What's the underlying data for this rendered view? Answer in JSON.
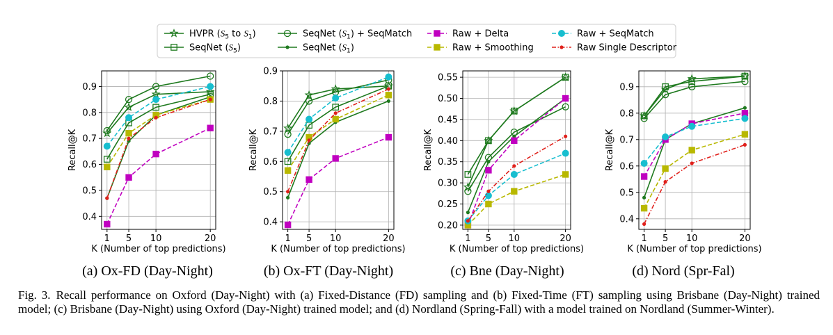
{
  "legend": {
    "entries": [
      {
        "key": "hvpr",
        "parts": [
          "HVPR (",
          "S",
          "5",
          " to ",
          "S",
          "1",
          ")"
        ]
      },
      {
        "key": "seqnet_s5",
        "parts": [
          "SeqNet (",
          "S",
          "5",
          ")"
        ]
      },
      {
        "key": "seqnet_s1_seqmatch",
        "parts": [
          "SeqNet (",
          "S",
          "1",
          ") + SeqMatch"
        ]
      },
      {
        "key": "seqnet_s1",
        "parts": [
          "SeqNet (",
          "S",
          "1",
          ")"
        ]
      },
      {
        "key": "raw_delta",
        "parts": [
          "Raw + Delta"
        ]
      },
      {
        "key": "raw_smoothing",
        "parts": [
          "Raw + Smoothing"
        ]
      },
      {
        "key": "raw_seqmatch",
        "parts": [
          "Raw + SeqMatch"
        ]
      },
      {
        "key": "raw_single",
        "parts": [
          "Raw Single Descriptor"
        ]
      }
    ]
  },
  "series_styles": {
    "hvpr": {
      "color": "#1f7a1f",
      "dash": "solid",
      "marker": "star"
    },
    "seqnet_s5": {
      "color": "#1f7a1f",
      "dash": "solid",
      "marker": "square-open"
    },
    "seqnet_s1_seqmatch": {
      "color": "#1f7a1f",
      "dash": "solid",
      "marker": "circle-open"
    },
    "seqnet_s1": {
      "color": "#1f7a1f",
      "dash": "solid",
      "marker": "dot"
    },
    "raw_delta": {
      "color": "#c000c0",
      "dash": "dashed",
      "marker": "square"
    },
    "raw_smoothing": {
      "color": "#b8b800",
      "dash": "dashed",
      "marker": "square"
    },
    "raw_seqmatch": {
      "color": "#17becf",
      "dash": "dashed",
      "marker": "circle"
    },
    "raw_single": {
      "color": "#e0201b",
      "dash": "dashdot",
      "marker": "dot"
    }
  },
  "chart_data": [
    {
      "type": "line",
      "panel_label": "(a) Ox-FD (Day-Night)",
      "xlabel": "K (Number of top predictions)",
      "ylabel": "Recall@K",
      "x": [
        1,
        5,
        10,
        20
      ],
      "xticks": [
        "1",
        "5",
        "10",
        "20"
      ],
      "ylim": [
        0.35,
        0.96
      ],
      "yticks": [
        0.4,
        0.5,
        0.6,
        0.7,
        0.8,
        0.9
      ],
      "yticklabels": [
        "0.4",
        "0.5",
        "0.6",
        "0.7",
        "0.8",
        "0.9"
      ],
      "grid": true,
      "series": [
        {
          "key": "hvpr",
          "name": "HVPR (S5 to S1)",
          "values": [
            0.72,
            0.82,
            0.87,
            0.88
          ]
        },
        {
          "key": "seqnet_s5",
          "name": "SeqNet (S5)",
          "values": [
            0.62,
            0.76,
            0.82,
            0.87
          ]
        },
        {
          "key": "seqnet_s1_seqmatch",
          "name": "SeqNet (S1) + SeqMatch",
          "values": [
            0.73,
            0.85,
            0.9,
            0.94
          ]
        },
        {
          "key": "seqnet_s1",
          "name": "SeqNet (S1)",
          "values": [
            0.47,
            0.69,
            0.79,
            0.86
          ]
        },
        {
          "key": "raw_delta",
          "name": "Raw + Delta",
          "values": [
            0.37,
            0.55,
            0.64,
            0.74
          ]
        },
        {
          "key": "raw_smoothing",
          "name": "Raw + Smoothing",
          "values": [
            0.59,
            0.72,
            0.79,
            0.85
          ]
        },
        {
          "key": "raw_seqmatch",
          "name": "Raw + SeqMatch",
          "values": [
            0.67,
            0.78,
            0.85,
            0.9
          ]
        },
        {
          "key": "raw_single",
          "name": "Raw Single Descriptor",
          "values": [
            0.47,
            0.7,
            0.78,
            0.85
          ]
        }
      ]
    },
    {
      "type": "line",
      "panel_label": "(b) Ox-FT (Day-Night)",
      "xlabel": "K (Number of top predictions)",
      "ylabel": "Recall@K",
      "x": [
        1,
        5,
        10,
        20
      ],
      "xticks": [
        "1",
        "5",
        "10",
        "20"
      ],
      "ylim": [
        0.375,
        0.9
      ],
      "yticks": [
        0.4,
        0.5,
        0.6,
        0.7,
        0.8,
        0.9
      ],
      "yticklabels": [
        "0.4",
        "0.5",
        "0.6",
        "0.7",
        "0.8",
        "0.9"
      ],
      "grid": true,
      "series": [
        {
          "key": "hvpr",
          "name": "HVPR (S5 to S1)",
          "values": [
            0.71,
            0.82,
            0.84,
            0.85
          ]
        },
        {
          "key": "seqnet_s5",
          "name": "SeqNet (S5)",
          "values": [
            0.6,
            0.72,
            0.78,
            0.85
          ]
        },
        {
          "key": "seqnet_s1_seqmatch",
          "name": "SeqNet (S1) + SeqMatch",
          "values": [
            0.69,
            0.8,
            0.83,
            0.87
          ]
        },
        {
          "key": "seqnet_s1",
          "name": "SeqNet (S1)",
          "values": [
            0.48,
            0.66,
            0.73,
            0.8
          ]
        },
        {
          "key": "raw_delta",
          "name": "Raw + Delta",
          "values": [
            0.39,
            0.54,
            0.61,
            0.68
          ]
        },
        {
          "key": "raw_smoothing",
          "name": "Raw + Smoothing",
          "values": [
            0.57,
            0.68,
            0.74,
            0.82
          ]
        },
        {
          "key": "raw_seqmatch",
          "name": "Raw + SeqMatch",
          "values": [
            0.63,
            0.74,
            0.81,
            0.88
          ]
        },
        {
          "key": "raw_single",
          "name": "Raw Single Descriptor",
          "values": [
            0.5,
            0.67,
            0.76,
            0.84
          ]
        }
      ]
    },
    {
      "type": "line",
      "panel_label": "(c) Bne (Day-Night)",
      "xlabel": "K (Number of top predictions)",
      "ylabel": "Recall@K",
      "x": [
        1,
        5,
        10,
        20
      ],
      "xticks": [
        "1",
        "5",
        "10",
        "20"
      ],
      "ylim": [
        0.19,
        0.565
      ],
      "yticks": [
        0.2,
        0.25,
        0.3,
        0.35,
        0.4,
        0.45,
        0.5,
        0.55
      ],
      "yticklabels": [
        "0.20",
        "0.25",
        "0.30",
        "0.35",
        "0.40",
        "0.45",
        "0.50",
        "0.55"
      ],
      "grid": true,
      "series": [
        {
          "key": "hvpr",
          "name": "HVPR (S5 to S1)",
          "values": [
            0.29,
            0.4,
            0.47,
            0.55
          ]
        },
        {
          "key": "seqnet_s5",
          "name": "SeqNet (S5)",
          "values": [
            0.32,
            0.4,
            0.47,
            0.55
          ]
        },
        {
          "key": "seqnet_s1_seqmatch",
          "name": "SeqNet (S1) + SeqMatch",
          "values": [
            0.28,
            0.36,
            0.42,
            0.48
          ]
        },
        {
          "key": "seqnet_s1",
          "name": "SeqNet (S1)",
          "values": [
            0.23,
            0.35,
            0.41,
            0.5
          ]
        },
        {
          "key": "raw_delta",
          "name": "Raw + Delta",
          "values": [
            0.2,
            0.33,
            0.4,
            0.5
          ]
        },
        {
          "key": "raw_smoothing",
          "name": "Raw + Smoothing",
          "values": [
            0.2,
            0.25,
            0.28,
            0.32
          ]
        },
        {
          "key": "raw_seqmatch",
          "name": "Raw + SeqMatch",
          "values": [
            0.21,
            0.27,
            0.32,
            0.37
          ]
        },
        {
          "key": "raw_single",
          "name": "Raw Single Descriptor",
          "values": [
            0.21,
            0.28,
            0.34,
            0.41
          ]
        }
      ]
    },
    {
      "type": "line",
      "panel_label": "(d) Nord (Spr-Fal)",
      "xlabel": "K (Number of top predictions)",
      "ylabel": "Recall@K",
      "x": [
        1,
        5,
        10,
        20
      ],
      "xticks": [
        "1",
        "5",
        "10",
        "20"
      ],
      "ylim": [
        0.36,
        0.96
      ],
      "yticks": [
        0.4,
        0.5,
        0.6,
        0.7,
        0.8,
        0.9
      ],
      "yticklabels": [
        "0.4",
        "0.5",
        "0.6",
        "0.7",
        "0.8",
        "0.9"
      ],
      "grid": true,
      "series": [
        {
          "key": "hvpr",
          "name": "HVPR (S5 to S1)",
          "values": [
            0.79,
            0.89,
            0.93,
            0.94
          ]
        },
        {
          "key": "seqnet_s5",
          "name": "SeqNet (S5)",
          "values": [
            0.79,
            0.9,
            0.92,
            0.94
          ]
        },
        {
          "key": "seqnet_s1_seqmatch",
          "name": "SeqNet (S1) + SeqMatch",
          "values": [
            0.78,
            0.87,
            0.9,
            0.92
          ]
        },
        {
          "key": "seqnet_s1",
          "name": "SeqNet (S1)",
          "values": [
            0.48,
            0.7,
            0.76,
            0.82
          ]
        },
        {
          "key": "raw_delta",
          "name": "Raw + Delta",
          "values": [
            0.56,
            0.7,
            0.76,
            0.8
          ]
        },
        {
          "key": "raw_smoothing",
          "name": "Raw + Smoothing",
          "values": [
            0.44,
            0.59,
            0.66,
            0.72
          ]
        },
        {
          "key": "raw_seqmatch",
          "name": "Raw + SeqMatch",
          "values": [
            0.61,
            0.71,
            0.75,
            0.78
          ]
        },
        {
          "key": "raw_single",
          "name": "Raw Single Descriptor",
          "values": [
            0.38,
            0.54,
            0.61,
            0.68
          ]
        }
      ]
    }
  ],
  "caption": {
    "label": "Fig. 3.",
    "text": "Recall performance on Oxford (Day-Night) with (a) Fixed-Distance (FD) sampling and (b) Fixed-Time (FT) sampling using Brisbane (Day-Night) trained model; (c) Brisbane (Day-Night) using Oxford (Day-Night) trained model; and (d) Nordland (Spring-Fall) with a model trained on Nordland (Summer-Winter)."
  }
}
